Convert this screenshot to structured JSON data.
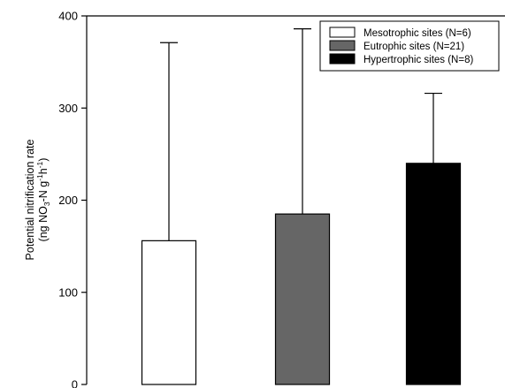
{
  "chart_data": {
    "type": "bar",
    "title": "",
    "xlabel": "",
    "ylabel": {
      "line1": "Potential nitrification rate",
      "line2_prefix": "(ng NO",
      "line2_sub": "3",
      "line2_mid": "-N g",
      "line2_sup1": "-1",
      "line2_h": "h",
      "line2_sup2": "-1",
      "line2_end": ")"
    },
    "ylim": [
      0,
      400
    ],
    "yticks": [
      0,
      100,
      200,
      300,
      400
    ],
    "ytick_labels": [
      "0",
      "100",
      "200",
      "300",
      "400"
    ],
    "grid": false,
    "legend_position": "top-right",
    "series": [
      {
        "name": "Mesotrophic sites (N=6)",
        "value": 156,
        "error_upper": 371,
        "color": "#ffffff"
      },
      {
        "name": "Eutrophic sites (N=21)",
        "value": 185,
        "error_upper": 386,
        "color": "#666666"
      },
      {
        "name": "Hypertrophic sites (N=8)",
        "value": 240,
        "error_upper": 316,
        "color": "#000000"
      }
    ]
  }
}
